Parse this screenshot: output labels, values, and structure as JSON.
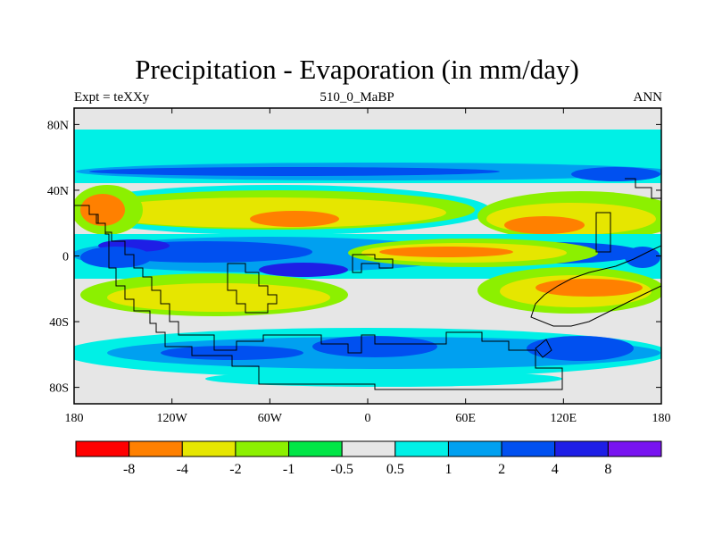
{
  "title": "Precipitation - Evaporation (in mm/day)",
  "subtitle_left": "Expt = teXXy",
  "subtitle_center": "510_0_MaBP",
  "subtitle_right": "ANN",
  "y_ticks": [
    {
      "lat": 80,
      "label": "80N"
    },
    {
      "lat": 40,
      "label": "40N"
    },
    {
      "lat": 0,
      "label": "0"
    },
    {
      "lat": -40,
      "label": "40S"
    },
    {
      "lat": -80,
      "label": "80S"
    }
  ],
  "x_ticks": [
    {
      "lon": -180,
      "label": "180"
    },
    {
      "lon": -120,
      "label": "120W"
    },
    {
      "lon": -60,
      "label": "60W"
    },
    {
      "lon": 0,
      "label": "0"
    },
    {
      "lon": 60,
      "label": "60E"
    },
    {
      "lon": 120,
      "label": "120E"
    },
    {
      "lon": 180,
      "label": "180"
    }
  ],
  "colorbar": {
    "colors": [
      "#ff0000",
      "#ff8000",
      "#e6e600",
      "#8cf000",
      "#00e646",
      "#e6e6e6",
      "#00f0e6",
      "#00a0f0",
      "#0050f0",
      "#1e1ee6",
      "#7814f0"
    ],
    "labels": [
      "-8",
      "-4",
      "-2",
      "-1",
      "-0.5",
      "0.5",
      "1",
      "2",
      "4",
      "8"
    ]
  },
  "colors": {
    "coast": "#000000",
    "frame": "#000000"
  }
}
